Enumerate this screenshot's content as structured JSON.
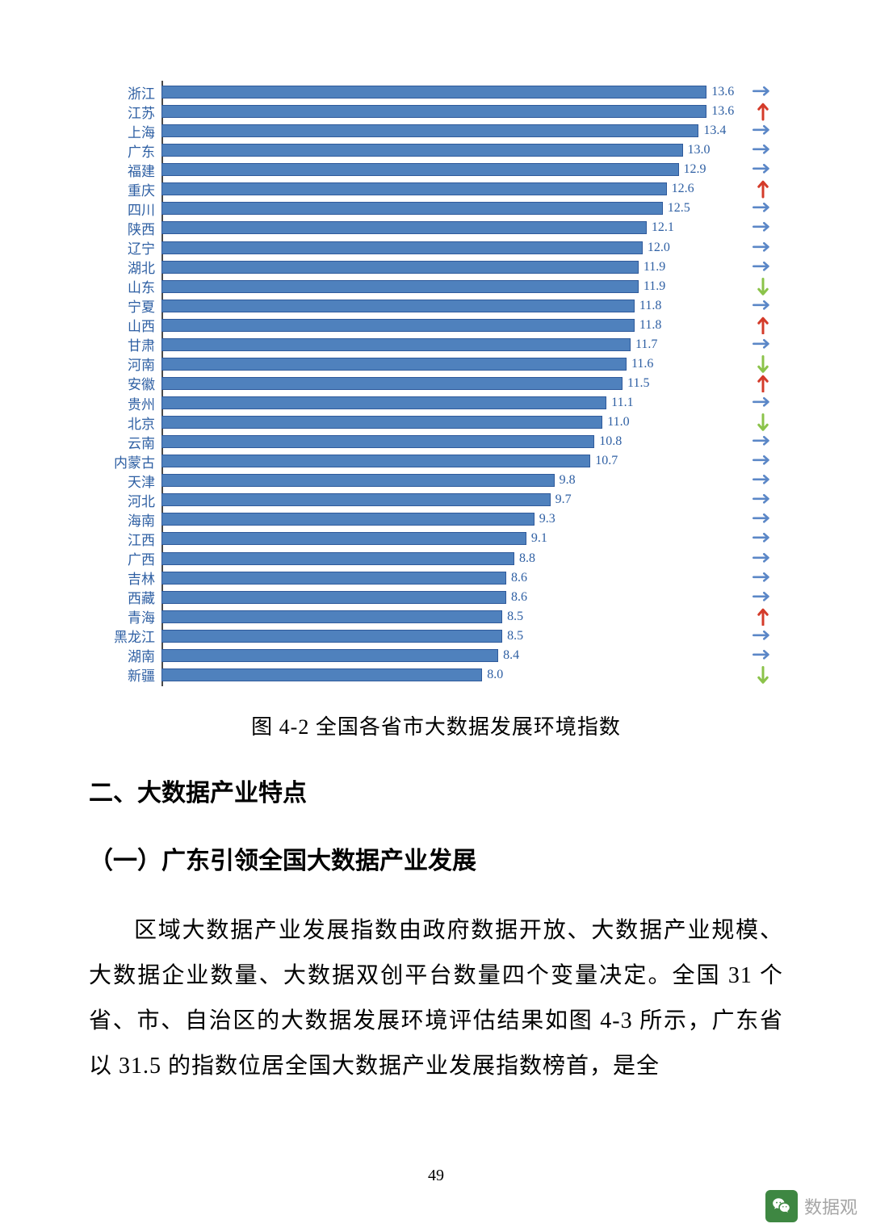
{
  "chart": {
    "type": "bar",
    "xlim_max": 14.5,
    "bar_color": "#4f81bd",
    "bar_border_color": "#2f5a9b",
    "label_color": "#2e5fa3",
    "label_fontsize": 17,
    "value_fontsize": 16,
    "axis_color": "#4a4a4a",
    "background_color": "#ffffff",
    "arrow_colors": {
      "right": "#5b87c7",
      "up": "#d43b2a",
      "down": "#8bc34a"
    },
    "items": [
      {
        "label": "浙江",
        "value": 13.6,
        "trend": "right"
      },
      {
        "label": "江苏",
        "value": 13.6,
        "trend": "up"
      },
      {
        "label": "上海",
        "value": 13.4,
        "trend": "right"
      },
      {
        "label": "广东",
        "value": 13.0,
        "trend": "right"
      },
      {
        "label": "福建",
        "value": 12.9,
        "trend": "right"
      },
      {
        "label": "重庆",
        "value": 12.6,
        "trend": "up"
      },
      {
        "label": "四川",
        "value": 12.5,
        "trend": "right"
      },
      {
        "label": "陕西",
        "value": 12.1,
        "trend": "right"
      },
      {
        "label": "辽宁",
        "value": 12.0,
        "trend": "right"
      },
      {
        "label": "湖北",
        "value": 11.9,
        "trend": "right"
      },
      {
        "label": "山东",
        "value": 11.9,
        "trend": "down"
      },
      {
        "label": "宁夏",
        "value": 11.8,
        "trend": "right"
      },
      {
        "label": "山西",
        "value": 11.8,
        "trend": "up"
      },
      {
        "label": "甘肃",
        "value": 11.7,
        "trend": "right"
      },
      {
        "label": "河南",
        "value": 11.6,
        "trend": "down"
      },
      {
        "label": "安徽",
        "value": 11.5,
        "trend": "up"
      },
      {
        "label": "贵州",
        "value": 11.1,
        "trend": "right"
      },
      {
        "label": "北京",
        "value": 11.0,
        "trend": "down"
      },
      {
        "label": "云南",
        "value": 10.8,
        "trend": "right"
      },
      {
        "label": "内蒙古",
        "value": 10.7,
        "trend": "right"
      },
      {
        "label": "天津",
        "value": 9.8,
        "trend": "right"
      },
      {
        "label": "河北",
        "value": 9.7,
        "trend": "right"
      },
      {
        "label": "海南",
        "value": 9.3,
        "trend": "right"
      },
      {
        "label": "江西",
        "value": 9.1,
        "trend": "right"
      },
      {
        "label": "广西",
        "value": 8.8,
        "trend": "right"
      },
      {
        "label": "吉林",
        "value": 8.6,
        "trend": "right"
      },
      {
        "label": "西藏",
        "value": 8.6,
        "trend": "right"
      },
      {
        "label": "青海",
        "value": 8.5,
        "trend": "up"
      },
      {
        "label": "黑龙江",
        "value": 8.5,
        "trend": "right"
      },
      {
        "label": "湖南",
        "value": 8.4,
        "trend": "right"
      },
      {
        "label": "新疆",
        "value": 8.0,
        "trend": "down"
      }
    ]
  },
  "caption": "图 4-2 全国各省市大数据发展环境指数",
  "heading2": "二、大数据产业特点",
  "heading3": "（一）广东引领全国大数据产业发展",
  "paragraph": "区域大数据产业发展指数由政府数据开放、大数据产业规模、大数据企业数量、大数据双创平台数量四个变量决定。全国 31 个省、市、自治区的大数据发展环境评估结果如图 4-3 所示，广东省以 31.5 的指数位居全国大数据产业发展指数榜首，是全",
  "page_number": "49",
  "watermark_text": "数据观"
}
